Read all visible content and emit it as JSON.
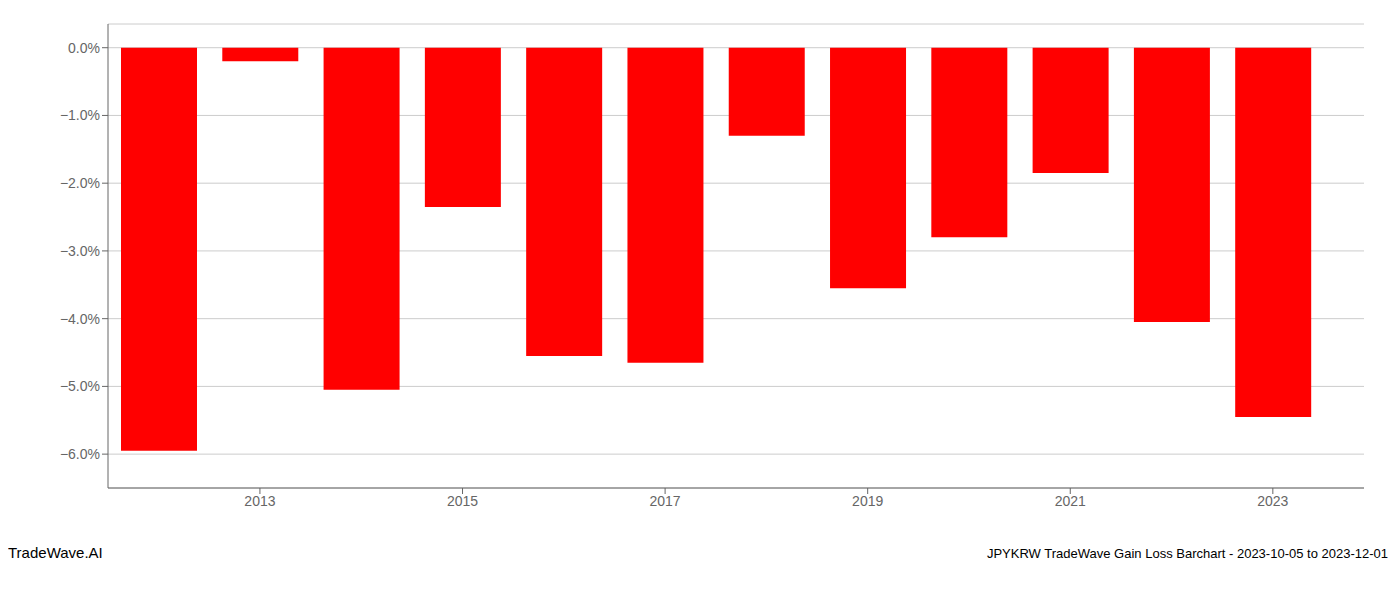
{
  "chart_data": {
    "type": "bar",
    "x": [
      2012,
      2013,
      2014,
      2015,
      2016,
      2017,
      2018,
      2019,
      2020,
      2021,
      2022,
      2023
    ],
    "values": [
      -5.95,
      -0.2,
      -5.05,
      -2.35,
      -4.55,
      -4.65,
      -1.3,
      -3.55,
      -2.8,
      -1.85,
      -4.05,
      -5.45
    ],
    "color": "#ff0000",
    "xlim": [
      2011.5,
      2023.9
    ],
    "xticks": [
      2013,
      2015,
      2017,
      2019,
      2021,
      2023
    ],
    "ylim": [
      -6.5,
      0.35
    ],
    "yticks": [
      {
        "value": 0.0,
        "label": "0.0%"
      },
      {
        "value": -1.0,
        "label": "−1.0%"
      },
      {
        "value": -2.0,
        "label": "−2.0%"
      },
      {
        "value": -3.0,
        "label": "−3.0%"
      },
      {
        "value": -4.0,
        "label": "−4.0%"
      },
      {
        "value": -5.0,
        "label": "−5.0%"
      },
      {
        "value": -6.0,
        "label": "−6.0%"
      }
    ],
    "grid": true,
    "annotations": [
      "TradeWave.AI",
      "JPYKRW TradeWave Gain Loss Barchart - 2023-10-05 to 2023-12-01"
    ]
  }
}
